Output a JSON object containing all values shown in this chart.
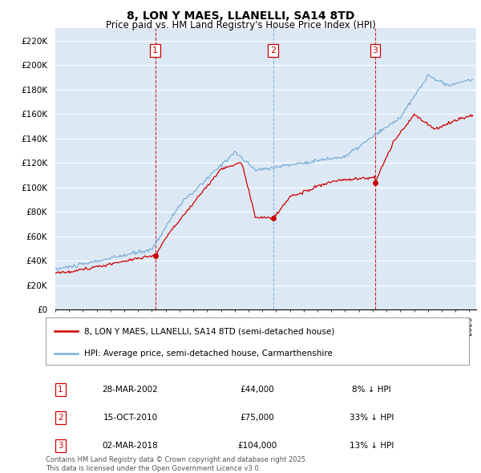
{
  "title": "8, LON Y MAES, LLANELLI, SA14 8TD",
  "subtitle": "Price paid vs. HM Land Registry's House Price Index (HPI)",
  "ylabel_ticks": [
    "£0",
    "£20K",
    "£40K",
    "£60K",
    "£80K",
    "£100K",
    "£120K",
    "£140K",
    "£160K",
    "£180K",
    "£200K",
    "£220K"
  ],
  "ytick_values": [
    0,
    20000,
    40000,
    60000,
    80000,
    100000,
    120000,
    140000,
    160000,
    180000,
    200000,
    220000
  ],
  "ylim": [
    0,
    230000
  ],
  "xlim_start": 1995.0,
  "xlim_end": 2025.5,
  "plot_bg_color": "#dce9f5",
  "grid_color": "#ffffff",
  "hpi_color": "#7aaed6",
  "prop_color": "#cc0000",
  "transactions": [
    {
      "num": 1,
      "date_str": "28-MAR-2002",
      "date_x": 2002.24,
      "price": 44000,
      "vline_color": "#cc0000",
      "vline_style": "--"
    },
    {
      "num": 2,
      "date_str": "15-OCT-2010",
      "date_x": 2010.79,
      "price": 75000,
      "vline_color": "#7aaed6",
      "vline_style": "--"
    },
    {
      "num": 3,
      "date_str": "02-MAR-2018",
      "date_x": 2018.17,
      "price": 104000,
      "vline_color": "#cc0000",
      "vline_style": "--"
    }
  ],
  "legend_property_label": "8, LON Y MAES, LLANELLI, SA14 8TD (semi-detached house)",
  "legend_hpi_label": "HPI: Average price, semi-detached house, Carmarthenshire",
  "footer_text": "Contains HM Land Registry data © Crown copyright and database right 2025.\nThis data is licensed under the Open Government Licence v3.0.",
  "transaction_table": [
    {
      "num": "1",
      "date": "28-MAR-2002",
      "price": "£44,000",
      "hpi": "8% ↓ HPI"
    },
    {
      "num": "2",
      "date": "15-OCT-2010",
      "price": "£75,000",
      "hpi": "33% ↓ HPI"
    },
    {
      "num": "3",
      "date": "02-MAR-2018",
      "price": "£104,000",
      "hpi": "13% ↓ HPI"
    }
  ]
}
